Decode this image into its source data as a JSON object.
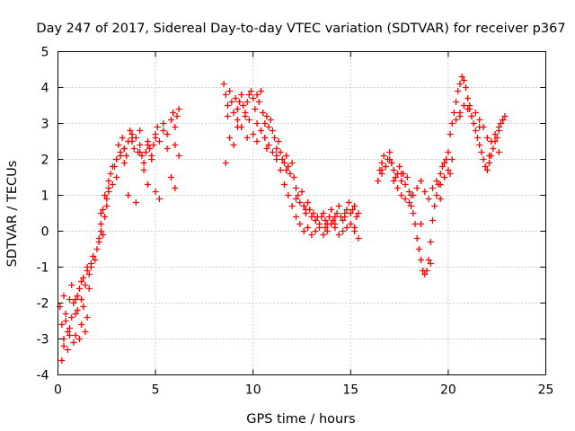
{
  "chart_data": {
    "type": "scatter",
    "title": "Day 247 of 2017, Sidereal Day-to-day VTEC variation (SDTVAR) for receiver p367",
    "xlabel": "GPS time / hours",
    "ylabel": "SDTVAR / TECUs",
    "xlim": [
      0,
      25
    ],
    "ylim": [
      -4,
      5
    ],
    "xticks": [
      0,
      5,
      10,
      15,
      20,
      25
    ],
    "yticks": [
      -4,
      -3,
      -2,
      -1,
      0,
      1,
      2,
      3,
      4,
      5
    ],
    "xtick_labels": [
      "0",
      "5",
      "10",
      "15",
      "20",
      "25"
    ],
    "ytick_labels": [
      "-4",
      "-3",
      "-2",
      "-1",
      "0",
      "1",
      "2",
      "3",
      "4",
      "5"
    ],
    "grid": true,
    "marker": "plus",
    "color": "#ff0000",
    "series": [
      {
        "name": "p367",
        "x": [
          0.2,
          0.3,
          0.4,
          0.5,
          0.6,
          0.7,
          0.8,
          0.9,
          1.0,
          1.1,
          1.2,
          1.3,
          1.4,
          1.5,
          1.6,
          1.7,
          1.8,
          1.9,
          2.0,
          2.1,
          2.2,
          2.3,
          2.4,
          2.5,
          2.6,
          2.7,
          2.8,
          2.9,
          3.0,
          3.1,
          3.2,
          3.3,
          3.4,
          3.5,
          3.6,
          3.7,
          3.8,
          3.9,
          4.0,
          4.1,
          4.2,
          4.3,
          4.4,
          4.5,
          4.6,
          4.7,
          4.8,
          4.9,
          5.0,
          5.1,
          5.2,
          5.4,
          5.6,
          5.8,
          5.9,
          6.0,
          6.1,
          6.2,
          8.5,
          8.6,
          8.7,
          8.8,
          8.9,
          9.0,
          9.1,
          9.2,
          9.3,
          9.4,
          9.5,
          9.6,
          9.7,
          9.8,
          9.9,
          10.0,
          10.1,
          10.2,
          10.3,
          10.4,
          10.5,
          10.6,
          10.7,
          10.8,
          10.9,
          11.0,
          11.1,
          11.2,
          11.3,
          11.4,
          11.5,
          11.6,
          11.7,
          11.8,
          11.9,
          12.0,
          12.1,
          12.2,
          12.3,
          12.4,
          12.5,
          12.6,
          12.7,
          12.8,
          12.9,
          13.0,
          13.1,
          13.2,
          13.3,
          13.4,
          13.5,
          13.6,
          13.7,
          13.8,
          13.9,
          14.0,
          14.1,
          14.2,
          14.3,
          14.4,
          14.5,
          14.6,
          14.7,
          14.8,
          14.9,
          15.0,
          15.1,
          15.2,
          15.3,
          15.4,
          16.4,
          16.5,
          16.6,
          16.7,
          16.8,
          16.9,
          17.0,
          17.1,
          17.2,
          17.3,
          17.4,
          17.5,
          17.6,
          17.7,
          17.8,
          17.9,
          18.0,
          18.1,
          18.2,
          18.3,
          18.4,
          18.5,
          18.6,
          18.7,
          18.8,
          18.9,
          19.0,
          19.1,
          19.2,
          19.3,
          19.4,
          19.5,
          19.6,
          19.7,
          19.8,
          19.9,
          20.0,
          20.1,
          20.2,
          20.3,
          20.4,
          20.5,
          20.6,
          20.7,
          20.8,
          20.9,
          21.0,
          21.1,
          21.2,
          21.3,
          21.4,
          21.5,
          21.6,
          21.7,
          21.8,
          21.9,
          22.0,
          22.1,
          22.2,
          22.3,
          22.4,
          22.5,
          22.6,
          22.7,
          22.8,
          22.9,
          0.1,
          0.2,
          0.3,
          0.4,
          0.5,
          0.6,
          0.7,
          0.8,
          0.9,
          1.0,
          1.1,
          1.2,
          1.3,
          1.4,
          1.5,
          1.6,
          1.7,
          2.1,
          2.2,
          2.3,
          2.4,
          2.5,
          2.6,
          2.8,
          3.0,
          3.2,
          3.4,
          3.6,
          3.8,
          4.0,
          4.2,
          4.4,
          4.6,
          4.8,
          5.0,
          5.2,
          5.6,
          5.8,
          6.0,
          6.2,
          8.6,
          8.8,
          9.0,
          9.2,
          9.4,
          9.6,
          9.8,
          10.0,
          10.2,
          10.4,
          10.6,
          10.8,
          11.0,
          11.2,
          11.4,
          11.6,
          11.8,
          12.0,
          12.2,
          12.4,
          12.6,
          12.8,
          13.0,
          13.2,
          13.4,
          13.6,
          13.8,
          14.0,
          14.2,
          14.4,
          14.6,
          14.8,
          15.0,
          15.2,
          15.4,
          16.6,
          16.8,
          17.0,
          17.2,
          17.4,
          17.6,
          17.8,
          18.0,
          18.2,
          18.4,
          18.6,
          18.8,
          19.0,
          19.2,
          19.4,
          19.6,
          19.8,
          20.0,
          20.2,
          20.4,
          20.6,
          20.8,
          21.0,
          21.2,
          21.4,
          21.6,
          21.8,
          22.0,
          22.2,
          22.4,
          22.6,
          22.8,
          0.3,
          0.6,
          0.9,
          1.2,
          1.5,
          1.8,
          2.2,
          2.6,
          3.0,
          3.4,
          3.8,
          4.2,
          4.6,
          5.0,
          5.4,
          6.0,
          8.7,
          9.2,
          9.7,
          10.2,
          10.7,
          11.2,
          11.7,
          12.2,
          12.7,
          13.2,
          13.7,
          14.2,
          14.7,
          15.2,
          16.6,
          17.1,
          17.6,
          18.1,
          18.6,
          19.1,
          19.6,
          20.1,
          20.6,
          21.1,
          21.6,
          22.1,
          22.6
        ],
        "y": [
          -2.6,
          -3.2,
          -2.3,
          -2.8,
          -1.9,
          -2.4,
          -2.0,
          -2.3,
          -1.8,
          -1.6,
          -1.9,
          -1.3,
          -1.5,
          -1.1,
          -1.2,
          -0.9,
          -0.7,
          -0.8,
          -0.5,
          -0.2,
          0.2,
          0.6,
          0.4,
          0.9,
          1.2,
          1.6,
          1.3,
          1.8,
          2.0,
          2.4,
          2.1,
          2.6,
          2.3,
          2.1,
          2.5,
          2.8,
          2.5,
          2.3,
          2.6,
          2.2,
          2.4,
          2.1,
          1.9,
          2.2,
          2.5,
          2.3,
          2.1,
          2.4,
          2.7,
          2.9,
          2.5,
          3.0,
          2.7,
          3.1,
          3.3,
          2.9,
          3.2,
          3.4,
          4.1,
          3.8,
          3.5,
          3.9,
          3.6,
          3.3,
          3.7,
          3.4,
          3.6,
          3.8,
          3.5,
          3.2,
          3.6,
          3.8,
          3.9,
          3.7,
          3.4,
          3.8,
          3.6,
          3.9,
          3.3,
          3.0,
          3.2,
          2.9,
          3.1,
          2.8,
          2.6,
          2.3,
          2.5,
          2.2,
          2.0,
          1.9,
          2.1,
          1.8,
          1.6,
          1.9,
          1.5,
          1.2,
          1.0,
          0.8,
          1.1,
          0.7,
          0.5,
          0.8,
          0.6,
          0.4,
          0.5,
          0.3,
          0.4,
          0.2,
          0.4,
          0.5,
          0.3,
          0.2,
          0.4,
          0.6,
          0.3,
          0.4,
          0.5,
          0.7,
          0.4,
          0.3,
          0.5,
          0.6,
          0.8,
          0.5,
          0.6,
          0.7,
          0.4,
          0.5,
          1.4,
          1.7,
          1.9,
          2.1,
          1.8,
          2.0,
          2.2,
          1.9,
          1.7,
          1.5,
          1.6,
          1.8,
          1.4,
          1.6,
          1.3,
          1.5,
          1.1,
          0.7,
          0.5,
          0.2,
          -0.2,
          -0.5,
          -0.8,
          -1.1,
          -1.2,
          -1.1,
          -0.8,
          -0.3,
          0.3,
          0.7,
          1.0,
          1.3,
          1.6,
          1.8,
          1.9,
          2.0,
          2.2,
          2.7,
          3.0,
          3.3,
          3.6,
          3.9,
          4.1,
          4.3,
          4.2,
          4.0,
          3.7,
          3.4,
          3.2,
          3.0,
          2.8,
          2.6,
          2.4,
          2.2,
          2.0,
          1.8,
          1.7,
          1.9,
          2.1,
          2.3,
          2.5,
          2.6,
          2.8,
          3.0,
          3.1,
          3.2,
          -2.1,
          -3.6,
          -3.0,
          -2.5,
          -3.3,
          -2.7,
          -1.5,
          -3.1,
          -2.9,
          -2.2,
          -3.0,
          -2.6,
          -2.1,
          -2.8,
          -2.4,
          -1.6,
          -1.0,
          -0.3,
          0.5,
          -0.1,
          1.0,
          0.7,
          1.4,
          1.8,
          1.5,
          2.2,
          1.9,
          1.0,
          2.6,
          0.8,
          2.8,
          1.7,
          1.3,
          2.0,
          1.1,
          0.9,
          2.3,
          1.5,
          1.2,
          2.1,
          1.9,
          2.6,
          2.4,
          3.1,
          2.9,
          3.3,
          3.1,
          2.7,
          3.0,
          2.8,
          2.6,
          2.4,
          2.2,
          2.0,
          1.7,
          1.3,
          1.0,
          0.7,
          0.4,
          0.2,
          0.0,
          0.1,
          -0.1,
          0.0,
          0.1,
          -0.1,
          0.0,
          0.2,
          0.1,
          -0.1,
          0.0,
          0.1,
          0.2,
          0.0,
          -0.2,
          1.6,
          1.8,
          2.0,
          1.4,
          1.2,
          1.0,
          0.9,
          0.8,
          1.0,
          1.2,
          1.4,
          1.1,
          0.9,
          1.2,
          1.4,
          1.3,
          1.5,
          1.7,
          2.0,
          3.1,
          3.3,
          3.5,
          3.4,
          3.2,
          3.3,
          3.1,
          2.9,
          2.6,
          2.5,
          2.7,
          2.9,
          3.1,
          -1.8,
          -2.9,
          -1.9,
          -1.4,
          -1.0,
          -0.7,
          0.0,
          1.1,
          2.0,
          2.3,
          2.7,
          2.2,
          2.4,
          2.6,
          2.8,
          2.4,
          3.2,
          2.9,
          2.6,
          2.5,
          2.3,
          2.1,
          1.7,
          0.9,
          0.6,
          0.3,
          0.1,
          0.2,
          0.4,
          0.1,
          1.7,
          1.9,
          1.6,
          1.0,
          0.2,
          -0.9,
          0.9,
          1.6,
          3.2,
          3.5,
          2.9,
          2.1,
          2.2
        ]
      }
    ]
  }
}
